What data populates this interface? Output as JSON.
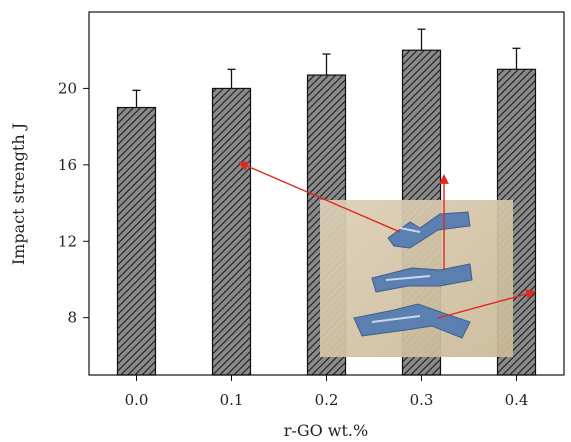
{
  "chart_data": {
    "type": "bar",
    "xlabel": "r-GO wt.%",
    "ylabel": "Impact strength J",
    "categories": [
      "0.0",
      "0.1",
      "0.2",
      "0.3",
      "0.4"
    ],
    "values": [
      19.0,
      20.0,
      20.7,
      22.0,
      21.0
    ],
    "errors": [
      0.9,
      1.0,
      1.1,
      1.1,
      1.1
    ],
    "ylim": [
      5,
      24
    ],
    "yticks": [
      8,
      12,
      16,
      20
    ],
    "bar_fill": "hatched dark gray",
    "grid": false,
    "legend": "none",
    "inset": "photo of three fractured blue specimens with red arrows pointing to bars 0.1, 0.3 and 0.4"
  },
  "colors": {
    "bar_fill": "#7a7a7a",
    "hatch": "#1a1a1a",
    "arrow": "#e0281e",
    "inset_bg": "#d8cab0",
    "specimen": "#5a7fb0"
  }
}
